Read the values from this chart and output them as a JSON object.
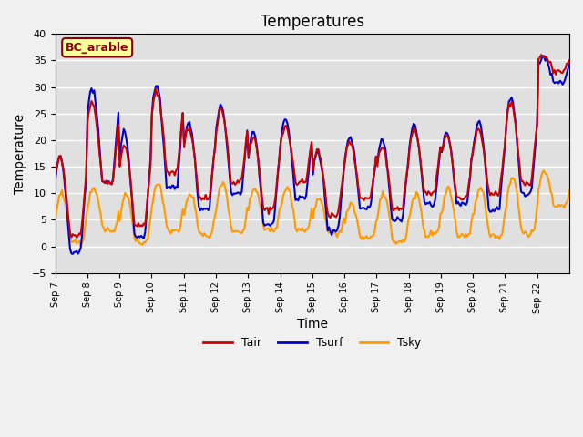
{
  "title": "Temperatures",
  "xlabel": "Time",
  "ylabel": "Temperature",
  "ylim": [
    -5,
    40
  ],
  "annotation": "BC_arable",
  "line_colors": {
    "Tair": "#cc0000",
    "Tsurf": "#0000cc",
    "Tsky": "#ff9900"
  },
  "line_widths": {
    "Tair": 1.5,
    "Tsurf": 1.5,
    "Tsky": 1.5
  },
  "background_color": "#e0e0e0",
  "grid_color": "#ffffff",
  "xtick_labels": [
    "Sep 7",
    "Sep 8",
    "Sep 9",
    "Sep 10",
    "Sep 11",
    "Sep 12",
    "Sep 13",
    "Sep 14",
    "Sep 15",
    "Sep 16",
    "Sep 17",
    "Sep 18",
    "Sep 19",
    "Sep 20",
    "Sep 21",
    "Sep 22"
  ],
  "days": 16,
  "pts_per_day": 24,
  "tair_base": [
    12,
    22,
    14,
    24,
    18,
    21,
    16,
    19,
    14,
    16,
    15,
    18,
    17,
    18,
    22,
    35
  ],
  "tair_amp": [
    10,
    10,
    10,
    10,
    9,
    9,
    9,
    7,
    8,
    7,
    8,
    8,
    8,
    8,
    10,
    2
  ],
  "tsurf_base": [
    11,
    24,
    15,
    24,
    18,
    21,
    16,
    19,
    13,
    16,
    15,
    18,
    17,
    18,
    22,
    34
  ],
  "tsurf_amp": [
    12,
    12,
    13,
    13,
    11,
    11,
    12,
    10,
    10,
    9,
    10,
    10,
    9,
    11,
    12,
    3
  ],
  "tsky_base": [
    3,
    5,
    3,
    5,
    4,
    5,
    5,
    5,
    4,
    3,
    3,
    4,
    4,
    4,
    5,
    9
  ],
  "tsky_amp": [
    7,
    6,
    7,
    7,
    6,
    7,
    6,
    6,
    5,
    5,
    7,
    6,
    7,
    7,
    8,
    5
  ]
}
